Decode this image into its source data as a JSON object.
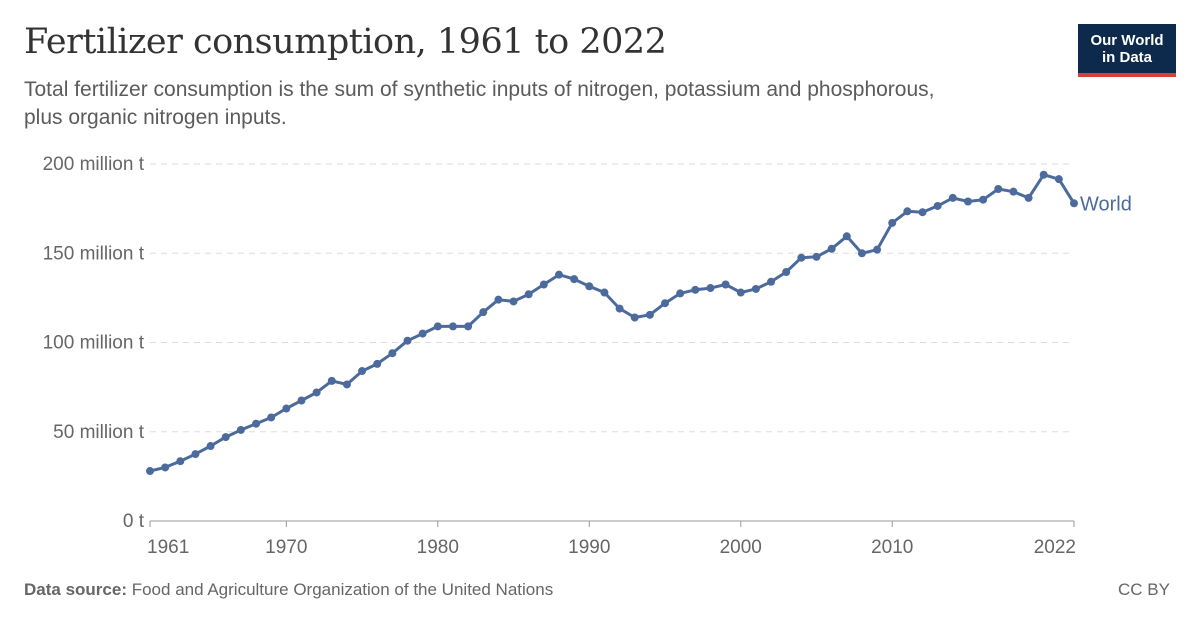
{
  "header": {
    "title": "Fertilizer consumption, 1961 to 2022",
    "subtitle": "Total fertilizer consumption is the sum of synthetic inputs of nitrogen, potassium and phosphorous, plus organic nitrogen inputs."
  },
  "logo": {
    "line1": "Our World",
    "line2": "in Data"
  },
  "footer": {
    "source_label": "Data source:",
    "source_text": "Food and Agriculture Organization of the United Nations",
    "license": "CC BY"
  },
  "colors": {
    "series": "#4c6a9c",
    "grid": "#dddddd",
    "axis": "#999999"
  },
  "chart_data": {
    "type": "line",
    "title": "Fertilizer consumption, 1961 to 2022",
    "xlabel": "",
    "ylabel": "",
    "ylim": [
      0,
      200000000
    ],
    "xlim": [
      1961,
      2022
    ],
    "y_ticks": [
      {
        "value": 0,
        "label": "0 t"
      },
      {
        "value": 50000000,
        "label": "50 million t"
      },
      {
        "value": 100000000,
        "label": "100 million t"
      },
      {
        "value": 150000000,
        "label": "150 million t"
      },
      {
        "value": 200000000,
        "label": "200 million t"
      }
    ],
    "x_ticks": [
      {
        "value": 1961,
        "label": "1961"
      },
      {
        "value": 1970,
        "label": "1970"
      },
      {
        "value": 1980,
        "label": "1980"
      },
      {
        "value": 1990,
        "label": "1990"
      },
      {
        "value": 2000,
        "label": "2000"
      },
      {
        "value": 2010,
        "label": "2010"
      },
      {
        "value": 2022,
        "label": "2022"
      }
    ],
    "grid": true,
    "legend": "inline-right",
    "series": [
      {
        "name": "World",
        "x": [
          1961,
          1962,
          1963,
          1964,
          1965,
          1966,
          1967,
          1968,
          1969,
          1970,
          1971,
          1972,
          1973,
          1974,
          1975,
          1976,
          1977,
          1978,
          1979,
          1980,
          1981,
          1982,
          1983,
          1984,
          1985,
          1986,
          1987,
          1988,
          1989,
          1990,
          1991,
          1992,
          1993,
          1994,
          1995,
          1996,
          1997,
          1998,
          1999,
          2000,
          2001,
          2002,
          2003,
          2004,
          2005,
          2006,
          2007,
          2008,
          2009,
          2010,
          2011,
          2012,
          2013,
          2014,
          2015,
          2016,
          2017,
          2018,
          2019,
          2020,
          2021,
          2022
        ],
        "y": [
          28000000,
          30000000,
          33500000,
          37500000,
          42000000,
          47000000,
          51000000,
          54500000,
          58000000,
          63000000,
          67500000,
          72000000,
          78500000,
          76500000,
          84000000,
          88000000,
          94000000,
          101000000,
          105000000,
          109000000,
          109000000,
          109000000,
          117000000,
          124000000,
          123000000,
          127000000,
          132500000,
          138000000,
          135500000,
          131500000,
          128000000,
          119000000,
          114000000,
          115500000,
          122000000,
          127500000,
          129500000,
          130500000,
          132500000,
          128000000,
          130000000,
          134000000,
          139500000,
          147500000,
          148000000,
          152500000,
          159500000,
          150000000,
          152000000,
          167000000,
          173500000,
          173000000,
          176500000,
          181000000,
          179000000,
          180000000,
          186000000,
          184500000,
          181000000,
          194000000,
          191500000,
          178000000
        ]
      }
    ]
  }
}
